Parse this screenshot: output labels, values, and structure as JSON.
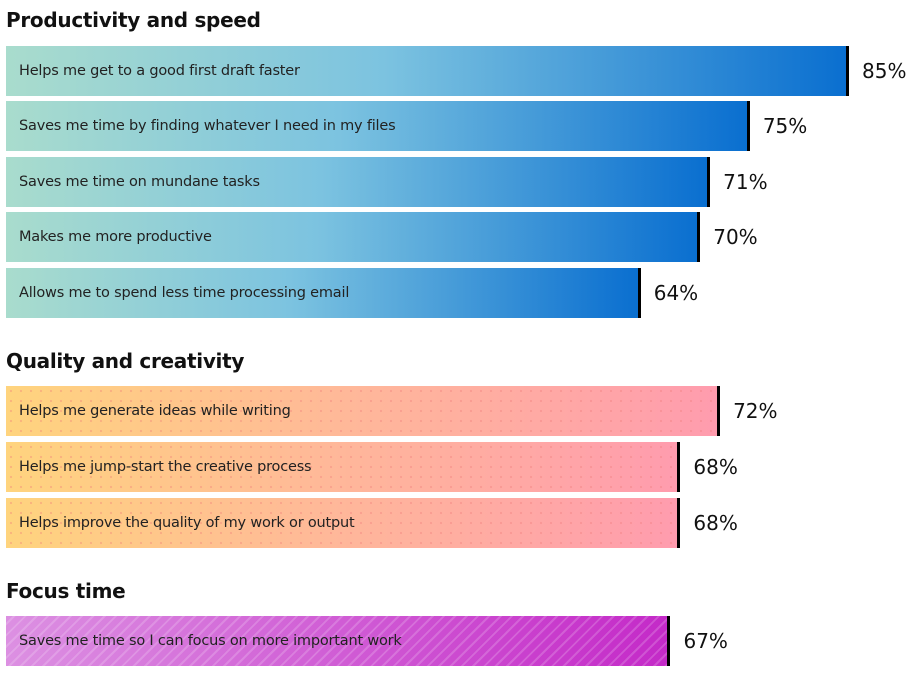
{
  "chart_data": [
    {
      "type": "bar",
      "orientation": "horizontal",
      "title": "Productivity and speed",
      "unit": "%",
      "xlim": [
        0,
        85
      ],
      "categories": [
        "Helps me get to a good first draft faster",
        "Saves me time by finding whatever I need in my files",
        "Saves me time on mundane tasks",
        "Makes me more productive",
        "Allows me to spend less time processing email"
      ],
      "values": [
        85,
        75,
        71,
        70,
        64
      ],
      "value_labels": [
        "85%",
        "75%",
        "71%",
        "70%",
        "64%"
      ],
      "color_from": "#a9dccd",
      "color_to": "#0a6fd0"
    },
    {
      "type": "bar",
      "orientation": "horizontal",
      "title": "Quality and creativity",
      "unit": "%",
      "categories": [
        "Helps me generate ideas while writing",
        "Helps me jump-start the creative process",
        "Helps improve the quality of my work or output"
      ],
      "values": [
        72,
        68,
        68
      ],
      "value_labels": [
        "72%",
        "68%",
        "68%"
      ],
      "color_from": "#ffd47e",
      "color_to": "#ff9cae"
    },
    {
      "type": "bar",
      "orientation": "horizontal",
      "title": "Focus time",
      "unit": "%",
      "categories": [
        "Saves me time so I can focus on more important work"
      ],
      "values": [
        67
      ],
      "value_labels": [
        "67%"
      ],
      "color_from": "#dc90e2",
      "color_to": "#c42ac8"
    }
  ]
}
